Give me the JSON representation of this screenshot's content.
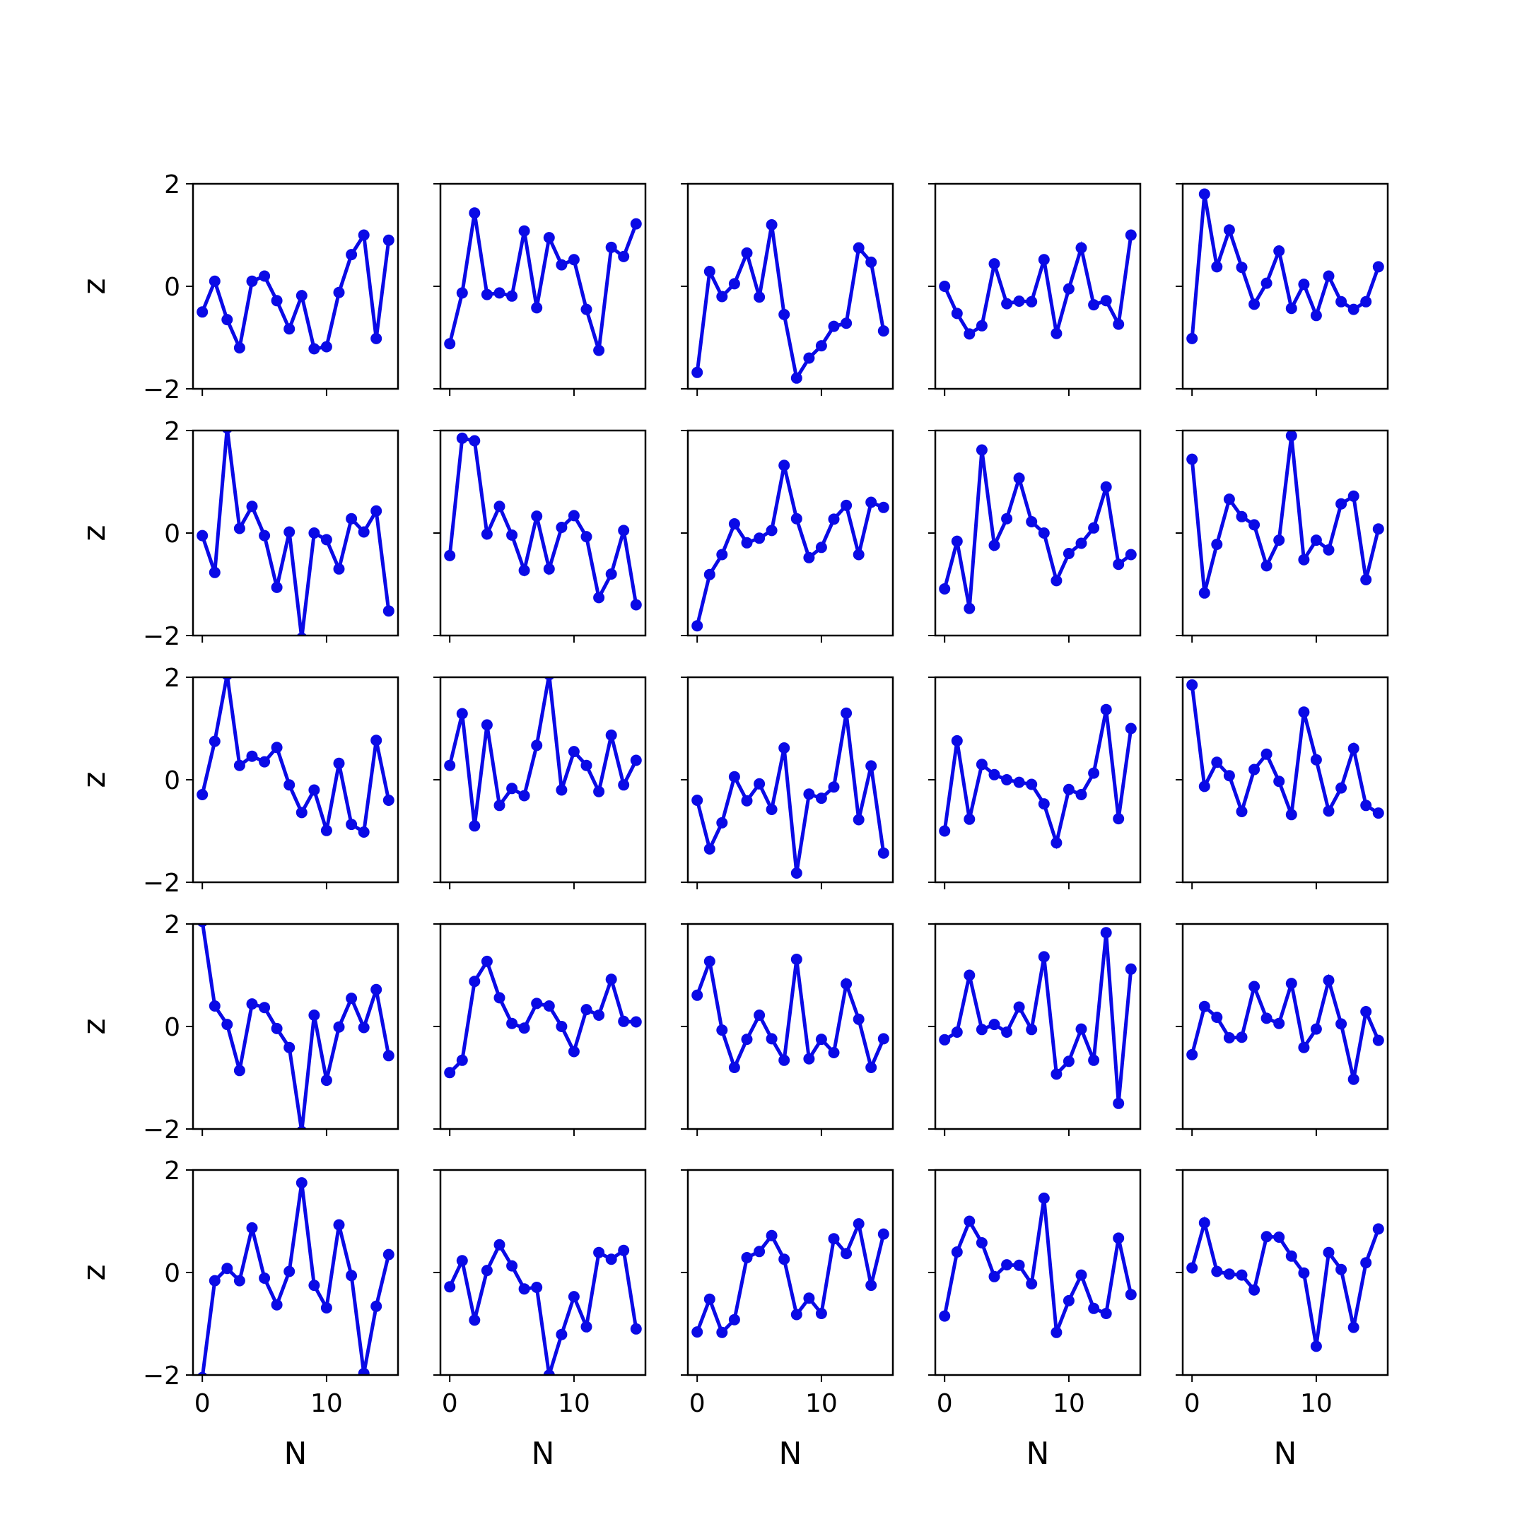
{
  "figure": {
    "line_color": "#0a0ae6",
    "frame_color": "#000000",
    "background": "#ffffff"
  },
  "chart_data": {
    "type": "line",
    "layout": "5x5 grid of subplots, shared axes",
    "xlabel": "N",
    "ylabel": "z",
    "xlim": [
      -0.75,
      15.75
    ],
    "ylim": [
      -2,
      2
    ],
    "xticks": [
      0,
      10
    ],
    "yticks": [
      -2,
      0,
      2
    ],
    "ytick_labels": [
      "−2",
      "0",
      "2"
    ],
    "xtick_labels": [
      "0",
      "10"
    ],
    "markers": true,
    "grid": false,
    "x": [
      0,
      1,
      2,
      3,
      4,
      5,
      6,
      7,
      8,
      9,
      10,
      11,
      12,
      13,
      14,
      15
    ],
    "subplots": [
      {
        "row": 0,
        "col": 0,
        "values": [
          -0.5,
          0.1,
          -0.65,
          -1.2,
          0.1,
          0.2,
          -0.28,
          -0.83,
          -0.18,
          -1.22,
          -1.18,
          -0.12,
          0.62,
          1.0,
          -1.02,
          0.9
        ]
      },
      {
        "row": 0,
        "col": 1,
        "values": [
          -1.12,
          -0.13,
          1.43,
          -0.16,
          -0.13,
          -0.19,
          1.08,
          -0.42,
          0.95,
          0.42,
          0.52,
          -0.45,
          -1.25,
          0.76,
          0.58,
          1.22
        ]
      },
      {
        "row": 0,
        "col": 2,
        "values": [
          -1.68,
          0.29,
          -0.2,
          0.05,
          0.65,
          -0.21,
          1.2,
          -0.55,
          -1.79,
          -1.4,
          -1.16,
          -0.78,
          -0.72,
          0.75,
          0.47,
          -0.87
        ]
      },
      {
        "row": 0,
        "col": 3,
        "values": [
          0.0,
          -0.53,
          -0.93,
          -0.77,
          0.44,
          -0.34,
          -0.29,
          -0.3,
          0.52,
          -0.92,
          -0.05,
          0.75,
          -0.36,
          -0.28,
          -0.74,
          1.0
        ]
      },
      {
        "row": 0,
        "col": 4,
        "values": [
          -1.02,
          1.8,
          0.38,
          1.1,
          0.37,
          -0.35,
          0.06,
          0.69,
          -0.43,
          0.04,
          -0.57,
          0.2,
          -0.3,
          -0.45,
          -0.3,
          0.38
        ]
      },
      {
        "row": 1,
        "col": 0,
        "values": [
          -0.05,
          -0.77,
          2.05,
          0.09,
          0.52,
          -0.05,
          -1.06,
          0.02,
          -2.05,
          0.0,
          -0.13,
          -0.7,
          0.28,
          0.02,
          0.43,
          -1.52
        ]
      },
      {
        "row": 1,
        "col": 1,
        "values": [
          -0.44,
          1.85,
          1.8,
          -0.02,
          0.52,
          -0.04,
          -0.73,
          0.33,
          -0.7,
          0.11,
          0.34,
          -0.07,
          -1.26,
          -0.8,
          0.05,
          -1.4
        ]
      },
      {
        "row": 1,
        "col": 2,
        "values": [
          -1.81,
          -0.81,
          -0.42,
          0.18,
          -0.19,
          -0.1,
          0.05,
          1.32,
          0.28,
          -0.48,
          -0.28,
          0.27,
          0.54,
          -0.42,
          0.6,
          0.5
        ]
      },
      {
        "row": 1,
        "col": 3,
        "values": [
          -1.09,
          -0.16,
          -1.47,
          1.62,
          -0.24,
          0.28,
          1.07,
          0.22,
          0.0,
          -0.93,
          -0.4,
          -0.2,
          0.1,
          0.9,
          -0.61,
          -0.42
        ]
      },
      {
        "row": 1,
        "col": 4,
        "values": [
          1.44,
          -1.17,
          -0.22,
          0.66,
          0.32,
          0.16,
          -0.64,
          -0.14,
          1.9,
          -0.52,
          -0.14,
          -0.33,
          0.57,
          0.72,
          -0.91,
          0.08
        ]
      },
      {
        "row": 2,
        "col": 0,
        "values": [
          -0.29,
          0.75,
          2.05,
          0.28,
          0.46,
          0.35,
          0.63,
          -0.1,
          -0.64,
          -0.2,
          -0.99,
          0.32,
          -0.87,
          -1.02,
          0.77,
          -0.4
        ]
      },
      {
        "row": 2,
        "col": 1,
        "values": [
          0.28,
          1.29,
          -0.9,
          1.07,
          -0.5,
          -0.17,
          -0.31,
          0.67,
          2.05,
          -0.2,
          0.55,
          0.28,
          -0.23,
          0.87,
          -0.1,
          0.38
        ]
      },
      {
        "row": 2,
        "col": 2,
        "values": [
          -0.4,
          -1.35,
          -0.84,
          0.06,
          -0.41,
          -0.08,
          -0.58,
          0.62,
          -1.82,
          -0.28,
          -0.36,
          -0.14,
          1.3,
          -0.78,
          0.27,
          -1.43
        ]
      },
      {
        "row": 2,
        "col": 3,
        "values": [
          -1.0,
          0.76,
          -0.77,
          0.3,
          0.1,
          0.0,
          -0.05,
          -0.09,
          -0.47,
          -1.23,
          -0.19,
          -0.29,
          0.13,
          1.37,
          -0.76,
          1.0
        ]
      },
      {
        "row": 2,
        "col": 4,
        "values": [
          1.85,
          -0.13,
          0.34,
          0.08,
          -0.62,
          0.2,
          0.5,
          -0.03,
          -0.68,
          1.32,
          0.39,
          -0.61,
          -0.16,
          0.61,
          -0.5,
          -0.65
        ]
      },
      {
        "row": 3,
        "col": 0,
        "values": [
          2.05,
          0.4,
          0.04,
          -0.86,
          0.44,
          0.37,
          -0.04,
          -0.41,
          -2.05,
          0.22,
          -1.05,
          -0.01,
          0.55,
          -0.02,
          0.72,
          -0.57
        ]
      },
      {
        "row": 3,
        "col": 1,
        "values": [
          -0.9,
          -0.66,
          0.88,
          1.27,
          0.56,
          0.06,
          -0.03,
          0.45,
          0.4,
          0.0,
          -0.49,
          0.33,
          0.22,
          0.92,
          0.1,
          0.09
        ]
      },
      {
        "row": 3,
        "col": 2,
        "values": [
          0.61,
          1.27,
          -0.07,
          -0.8,
          -0.25,
          0.22,
          -0.24,
          -0.66,
          1.31,
          -0.63,
          -0.25,
          -0.51,
          0.83,
          0.14,
          -0.8,
          -0.24
        ]
      },
      {
        "row": 3,
        "col": 3,
        "values": [
          -0.26,
          -0.11,
          1.0,
          -0.06,
          0.04,
          -0.11,
          0.38,
          -0.06,
          1.36,
          -0.93,
          -0.68,
          -0.05,
          -0.66,
          1.83,
          -1.5,
          1.12
        ]
      },
      {
        "row": 3,
        "col": 4,
        "values": [
          -0.55,
          0.39,
          0.18,
          -0.22,
          -0.21,
          0.78,
          0.16,
          0.06,
          0.84,
          -0.41,
          -0.05,
          0.9,
          0.05,
          -1.03,
          0.29,
          -0.27
        ]
      },
      {
        "row": 4,
        "col": 0,
        "values": [
          -2.05,
          -0.16,
          0.08,
          -0.16,
          0.87,
          -0.11,
          -0.63,
          0.02,
          1.75,
          -0.25,
          -0.69,
          0.93,
          -0.06,
          -1.97,
          -0.66,
          0.35
        ]
      },
      {
        "row": 4,
        "col": 1,
        "values": [
          -0.28,
          0.23,
          -0.93,
          0.04,
          0.54,
          0.13,
          -0.32,
          -0.29,
          -2.0,
          -1.21,
          -0.47,
          -1.06,
          0.39,
          0.26,
          0.43,
          -1.1
        ]
      },
      {
        "row": 4,
        "col": 2,
        "values": [
          -1.16,
          -0.52,
          -1.17,
          -0.92,
          0.29,
          0.41,
          0.72,
          0.26,
          -0.82,
          -0.5,
          -0.8,
          0.66,
          0.37,
          0.95,
          -0.25,
          0.75
        ]
      },
      {
        "row": 4,
        "col": 3,
        "values": [
          -0.85,
          0.4,
          1.0,
          0.58,
          -0.08,
          0.15,
          0.14,
          -0.22,
          1.45,
          -1.17,
          -0.55,
          -0.05,
          -0.7,
          -0.8,
          0.67,
          -0.43
        ]
      },
      {
        "row": 4,
        "col": 4,
        "values": [
          0.09,
          0.97,
          0.02,
          -0.03,
          -0.05,
          -0.34,
          0.7,
          0.69,
          0.32,
          -0.01,
          -1.44,
          0.39,
          0.06,
          -1.07,
          0.19,
          0.85
        ]
      }
    ]
  }
}
